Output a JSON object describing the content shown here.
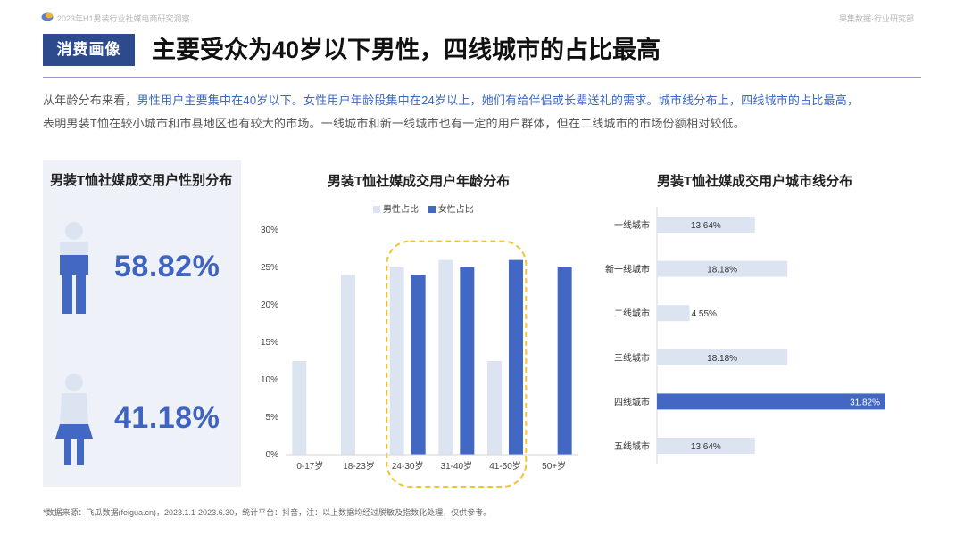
{
  "topbar": {
    "report_title": "2023年H1男装行业社媒电商研究洞察",
    "org": "果集数据·行业研究部"
  },
  "header": {
    "tag": "消费画像",
    "title": "主要受众为40岁以下男性，四线城市的占比最高"
  },
  "description": {
    "p1": "从年龄分布来看，",
    "p2": "男性用户主要集中在40岁以下。女性用户年龄段集中在24岁以上，她们有给伴侣或长辈送礼的需求。城市线分布上，四线城市的占比最高，",
    "p3": "表明男装T恤在较小城市和市县地区也有较大的市场。一线城市和新一线城市也有一定的用户群体，但在二线城市的市场份额相对较低。"
  },
  "gender_panel": {
    "title": "男装T恤社媒成交用户性别分布",
    "male_pct": "58.82%",
    "female_pct": "41.18%"
  },
  "age_chart_title": "男装T恤社媒成交用户年龄分布",
  "city_chart_title": "男装T恤社媒成交用户城市线分布",
  "footer": "*数据来源：飞瓜数据(feigua.cn)，2023.1.1-2023.6.30，统计平台：抖音，注：以上数据均经过脱敏及指数化处理，仅供参考。",
  "colors": {
    "light": "#dce4f2",
    "dark": "#4268c4",
    "accent": "#3f63c0",
    "highlight_box": "#f4c430"
  },
  "chart_data": [
    {
      "type": "bar",
      "title": "男装T恤社媒成交用户性别分布",
      "categories": [
        "男性",
        "女性"
      ],
      "values": [
        58.82,
        41.18
      ]
    },
    {
      "type": "bar",
      "title": "男装T恤社媒成交用户年龄分布",
      "categories": [
        "0-17岁",
        "18-23岁",
        "24-30岁",
        "31-40岁",
        "41-50岁",
        "50+岁"
      ],
      "series": [
        {
          "name": "男性占比",
          "values": [
            12.5,
            24,
            25,
            26,
            12.5,
            0
          ]
        },
        {
          "name": "女性占比",
          "values": [
            0,
            0,
            24,
            25,
            26,
            25
          ]
        }
      ],
      "yticks": [
        "0%",
        "5%",
        "10%",
        "15%",
        "20%",
        "25%",
        "30%"
      ],
      "ylim": [
        0,
        30
      ],
      "highlight_categories": [
        "24-30岁",
        "31-40岁",
        "41-50岁"
      ],
      "legend_position": "top"
    },
    {
      "type": "bar",
      "orientation": "horizontal",
      "title": "男装T恤社媒成交用户城市线分布",
      "categories": [
        "一线城市",
        "新一线城市",
        "二线城市",
        "三线城市",
        "四线城市",
        "五线城市"
      ],
      "values": [
        13.64,
        18.18,
        4.55,
        18.18,
        31.82,
        13.64
      ],
      "labels": [
        "13.64%",
        "18.18%",
        "4.55%",
        "18.18%",
        "31.82%",
        "13.64%"
      ],
      "highlight_category": "四线城市"
    }
  ]
}
